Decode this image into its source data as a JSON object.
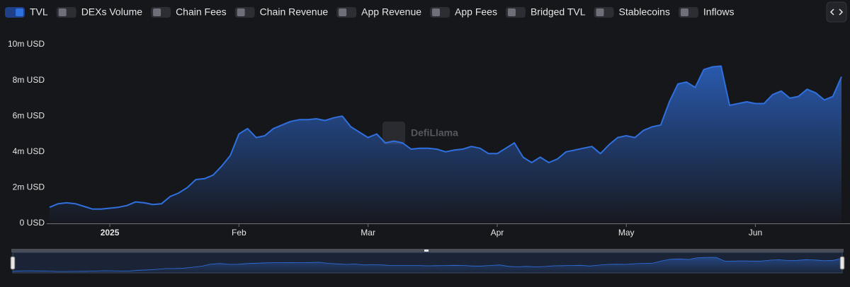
{
  "toggles": [
    {
      "label": "TVL",
      "checked": true
    },
    {
      "label": "DEXs Volume",
      "checked": false
    },
    {
      "label": "Chain Fees",
      "checked": false
    },
    {
      "label": "Chain Revenue",
      "checked": false
    },
    {
      "label": "App Revenue",
      "checked": false
    },
    {
      "label": "App Fees",
      "checked": false
    },
    {
      "label": "Bridged TVL",
      "checked": false
    },
    {
      "label": "Stablecoins",
      "checked": false
    },
    {
      "label": "Inflows",
      "checked": false
    }
  ],
  "watermark": "DefiLlama",
  "chart_data": {
    "type": "area",
    "categories": [
      null,
      null,
      null,
      null,
      null,
      null,
      null,
      "2025",
      null,
      null,
      null,
      null,
      null,
      null,
      null,
      null,
      null,
      null,
      null,
      null,
      null,
      null,
      "Feb",
      null,
      null,
      null,
      null,
      null,
      null,
      null,
      null,
      null,
      null,
      null,
      null,
      null,
      null,
      "Mar",
      null,
      null,
      null,
      null,
      null,
      null,
      null,
      null,
      null,
      null,
      null,
      null,
      null,
      null,
      "Apr",
      null,
      null,
      null,
      null,
      null,
      null,
      null,
      null,
      null,
      null,
      null,
      null,
      null,
      null,
      "May",
      null,
      null,
      null,
      null,
      null,
      null,
      null,
      null,
      null,
      null,
      null,
      null,
      null,
      null,
      "Jun",
      null,
      null,
      null,
      null,
      null,
      null,
      null,
      null,
      null,
      null
    ],
    "series": [
      {
        "name": "TVL",
        "color": "#2f6fde",
        "values": [
          900000,
          1100000,
          1150000,
          1100000,
          950000,
          800000,
          800000,
          850000,
          900000,
          1000000,
          1200000,
          1150000,
          1050000,
          1100000,
          1500000,
          1700000,
          2000000,
          2450000,
          2500000,
          2700000,
          3200000,
          3800000,
          5000000,
          5300000,
          4800000,
          4900000,
          5300000,
          5500000,
          5700000,
          5800000,
          5800000,
          5850000,
          5750000,
          5900000,
          6000000,
          5400000,
          5100000,
          4800000,
          5000000,
          4500000,
          4600000,
          4500000,
          4150000,
          4200000,
          4200000,
          4150000,
          4000000,
          4100000,
          4150000,
          4300000,
          4200000,
          3900000,
          3900000,
          4200000,
          4500000,
          3700000,
          3400000,
          3700000,
          3400000,
          3600000,
          4000000,
          4100000,
          4200000,
          4300000,
          3900000,
          4400000,
          4800000,
          4900000,
          4800000,
          5200000,
          5400000,
          5500000,
          6800000,
          7800000,
          7900000,
          7600000,
          8600000,
          8750000,
          8800000,
          6600000,
          6700000,
          6800000,
          6700000,
          6700000,
          7200000,
          7400000,
          7000000,
          7100000,
          7500000,
          7300000,
          6900000,
          7100000,
          8200000
        ]
      }
    ],
    "ylim": [
      0,
      10000000
    ],
    "yticks": [
      {
        "value": 0,
        "label": "0 USD"
      },
      {
        "value": 2000000,
        "label": "2m USD"
      },
      {
        "value": 4000000,
        "label": "4m USD"
      },
      {
        "value": 6000000,
        "label": "6m USD"
      },
      {
        "value": 8000000,
        "label": "8m USD"
      },
      {
        "value": 10000000,
        "label": "10m USD"
      }
    ],
    "grid": false
  }
}
